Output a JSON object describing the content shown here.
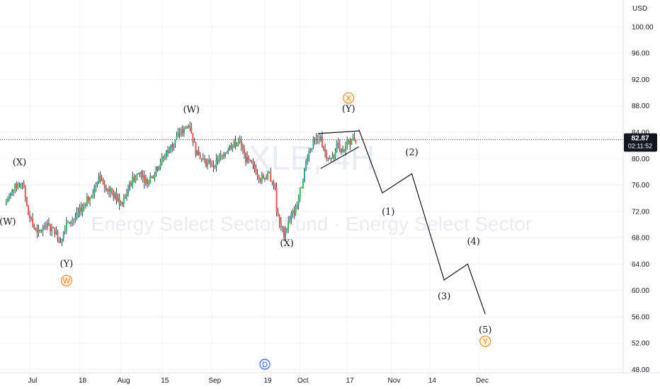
{
  "chart_data": {
    "type": "candlestick",
    "currency": "USD",
    "watermark": {
      "symbol": "XLE, 4H",
      "name": "Energy Select Sector Fund · Energy Select Sector"
    },
    "y_axis": {
      "range": [
        47,
        102
      ],
      "ticks": [
        "100.00",
        "96.00",
        "92.00",
        "88.00",
        "84.00",
        "80.00",
        "76.00",
        "72.00",
        "68.00",
        "64.00",
        "60.00",
        "56.00",
        "52.00",
        "48.00"
      ]
    },
    "x_axis": {
      "ticks": [
        {
          "label": "Jul",
          "day": 0
        },
        {
          "label": "18",
          "day": 17
        },
        {
          "label": "Aug",
          "day": 31
        },
        {
          "label": "15",
          "day": 45
        },
        {
          "label": "Sep",
          "day": 62
        },
        {
          "label": "19",
          "day": 80
        },
        {
          "label": "Oct",
          "day": 92
        },
        {
          "label": "17",
          "day": 108
        },
        {
          "label": "Nov",
          "day": 123
        },
        {
          "label": "14",
          "day": 136
        },
        {
          "label": "Dec",
          "day": 153
        }
      ]
    },
    "last_price": {
      "value": 82.87,
      "label": "82.87",
      "countdown": "02:11:52"
    },
    "price_path": [
      {
        "day": -8,
        "price": 73.0
      },
      {
        "day": -5,
        "price": 75.5
      },
      {
        "day": -2,
        "price": 76.5
      },
      {
        "day": 0,
        "price": 71.5
      },
      {
        "day": 3,
        "price": 68.5
      },
      {
        "day": 6,
        "price": 70.0
      },
      {
        "day": 9,
        "price": 69.0
      },
      {
        "day": 11,
        "price": 67.5
      },
      {
        "day": 13,
        "price": 70.5
      },
      {
        "day": 16,
        "price": 71.0
      },
      {
        "day": 19,
        "price": 73.0
      },
      {
        "day": 22,
        "price": 75.0
      },
      {
        "day": 24,
        "price": 77.5
      },
      {
        "day": 26,
        "price": 76.0
      },
      {
        "day": 29,
        "price": 74.5
      },
      {
        "day": 32,
        "price": 73.0
      },
      {
        "day": 35,
        "price": 76.5
      },
      {
        "day": 38,
        "price": 78.0
      },
      {
        "day": 40,
        "price": 76.5
      },
      {
        "day": 42,
        "price": 77.0
      },
      {
        "day": 45,
        "price": 79.5
      },
      {
        "day": 48,
        "price": 81.5
      },
      {
        "day": 51,
        "price": 83.5
      },
      {
        "day": 53,
        "price": 84.5
      },
      {
        "day": 55,
        "price": 85.0
      },
      {
        "day": 57,
        "price": 81.0
      },
      {
        "day": 60,
        "price": 79.5
      },
      {
        "day": 63,
        "price": 79.0
      },
      {
        "day": 66,
        "price": 80.5
      },
      {
        "day": 69,
        "price": 82.0
      },
      {
        "day": 72,
        "price": 82.5
      },
      {
        "day": 74,
        "price": 80.0
      },
      {
        "day": 77,
        "price": 78.5
      },
      {
        "day": 79,
        "price": 77.0
      },
      {
        "day": 82,
        "price": 77.5
      },
      {
        "day": 83.5,
        "price": 76.0
      },
      {
        "day": 84,
        "price": 73.0
      },
      {
        "day": 85.5,
        "price": 70.0
      },
      {
        "day": 87,
        "price": 68.5
      },
      {
        "day": 89,
        "price": 71.0
      },
      {
        "day": 91,
        "price": 72.5
      },
      {
        "day": 93,
        "price": 76.0
      },
      {
        "day": 95,
        "price": 80.5
      },
      {
        "day": 97,
        "price": 82.5
      },
      {
        "day": 99,
        "price": 83.5
      },
      {
        "day": 101,
        "price": 81.0
      },
      {
        "day": 103,
        "price": 79.5
      },
      {
        "day": 105,
        "price": 82.0
      },
      {
        "day": 107,
        "price": 81.0
      },
      {
        "day": 109,
        "price": 82.5
      },
      {
        "day": 111,
        "price": 83.0
      }
    ],
    "gaps": [
      83.5
    ],
    "triangle": [
      {
        "from": {
          "day": 98,
          "price": 83.8
        },
        "to": {
          "day": 112,
          "price": 84.2
        }
      },
      {
        "from": {
          "day": 99,
          "price": 78.5
        },
        "to": {
          "day": 112,
          "price": 81.8
        }
      }
    ],
    "projection": [
      {
        "day": 112,
        "price": 84.4
      },
      {
        "day": 120,
        "price": 74.8
      },
      {
        "day": 130,
        "price": 77.7
      },
      {
        "day": 141,
        "price": 61.6
      },
      {
        "day": 149,
        "price": 64.0
      },
      {
        "day": 155,
        "price": 56.4
      }
    ],
    "wave_labels": [
      {
        "text": "(W)",
        "day": -7.5,
        "price": 70.0
      },
      {
        "text": "(X)",
        "day": -3.5,
        "price": 79.0
      },
      {
        "text": "(Y)",
        "day": 12.5,
        "price": 63.6
      },
      {
        "text": "(W)",
        "day": 55.0,
        "price": 87.0
      },
      {
        "text": "(X)",
        "day": 87.5,
        "price": 66.7
      },
      {
        "text": "(Y)",
        "day": 108.5,
        "price": 87.1
      },
      {
        "text": "(1)",
        "day": 122.0,
        "price": 71.5
      },
      {
        "text": "(2)",
        "day": 130.0,
        "price": 80.5
      },
      {
        "text": "(3)",
        "day": 141.0,
        "price": 58.7
      },
      {
        "text": "(4)",
        "day": 151.0,
        "price": 67.0
      },
      {
        "text": "(5)",
        "day": 155.0,
        "price": 53.6
      }
    ],
    "circled_labels": [
      {
        "text": "W",
        "day": 12.5,
        "price": 61.5,
        "color": "#f57c00"
      },
      {
        "text": "X",
        "day": 108.5,
        "price": 89.2,
        "color": "#f57c00"
      },
      {
        "text": "Y",
        "day": 155.0,
        "price": 52.3,
        "color": "#f57c00"
      }
    ],
    "event_marker": {
      "text": "D",
      "day": 80,
      "color": "#2962ff"
    },
    "colors": {
      "up": "#26a69a",
      "up_bright": "#22c55e",
      "down": "#ef5350",
      "line": "#131722",
      "grid": "#f0f3fa",
      "axis_text": "#131722",
      "price_badge": "#131722"
    }
  }
}
